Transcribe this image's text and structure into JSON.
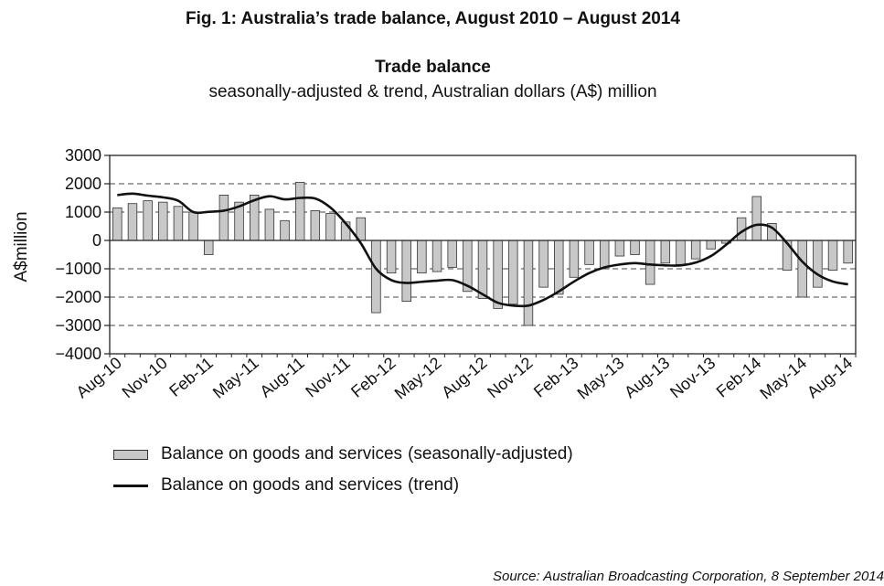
{
  "figure": {
    "title": "Fig. 1: Australia’s trade balance, August 2010 – August 2014",
    "source": "Source: Australian Broadcasting Corporation, 8 September 2014"
  },
  "legend": {
    "bar_main": "Balance on goods and services",
    "bar_qualifier": "(seasonally-adjusted)",
    "line_main": "Balance on goods and services",
    "line_qualifier": "(trend)"
  },
  "chart_data": {
    "type": "bar",
    "title": "Trade balance",
    "subtitle": "seasonally-adjusted & trend, Australian dollars (A$) million",
    "ylabel": "A$million",
    "xlabel": "",
    "ylim": [
      -4000,
      3000
    ],
    "yticks": [
      3000,
      2000,
      1000,
      0,
      -1000,
      -2000,
      -3000,
      -4000
    ],
    "ytick_labels": [
      "3000",
      "2000",
      "1000",
      "0",
      "−1000",
      "−2000",
      "−3000",
      "−4000"
    ],
    "grid": "horizontal dashed",
    "categories": [
      "Aug-10",
      "Sep-10",
      "Oct-10",
      "Nov-10",
      "Dec-10",
      "Jan-11",
      "Feb-11",
      "Mar-11",
      "Apr-11",
      "May-11",
      "Jun-11",
      "Jul-11",
      "Aug-11",
      "Sep-11",
      "Oct-11",
      "Nov-11",
      "Dec-11",
      "Jan-12",
      "Feb-12",
      "Mar-12",
      "Apr-12",
      "May-12",
      "Jun-12",
      "Jul-12",
      "Aug-12",
      "Sep-12",
      "Oct-12",
      "Nov-12",
      "Dec-12",
      "Jan-13",
      "Feb-13",
      "Mar-13",
      "Apr-13",
      "May-13",
      "Jun-13",
      "Jul-13",
      "Aug-13",
      "Sep-13",
      "Oct-13",
      "Nov-13",
      "Dec-13",
      "Jan-14",
      "Feb-14",
      "Mar-14",
      "Apr-14",
      "May-14",
      "Jun-14",
      "Jul-14",
      "Aug-14"
    ],
    "x_tick_labels": [
      "Aug-10",
      "Nov-10",
      "Feb-11",
      "May-11",
      "Aug-11",
      "Nov-11",
      "Feb-12",
      "May-12",
      "Aug-12",
      "Nov-12",
      "Feb-13",
      "May-13",
      "Aug-13",
      "Nov-13",
      "Feb-14",
      "May-14",
      "Aug-14"
    ],
    "series": [
      {
        "name": "Balance on goods and services (seasonally-adjusted)",
        "type": "bar",
        "color": "#c8c8c8",
        "values": [
          1150,
          1300,
          1400,
          1350,
          1200,
          1000,
          -500,
          1600,
          1350,
          1600,
          1100,
          700,
          2050,
          1050,
          950,
          650,
          800,
          -2550,
          -1150,
          -2150,
          -1150,
          -1100,
          -950,
          -1800,
          -2050,
          -2400,
          -2250,
          -3000,
          -1650,
          -1900,
          -1300,
          -850,
          -1000,
          -550,
          -500,
          -1550,
          -800,
          -850,
          -650,
          -300,
          -100,
          800,
          1550,
          600,
          -1050,
          -2000,
          -1650,
          -1050,
          -800
        ]
      },
      {
        "name": "Balance on goods and services (trend)",
        "type": "line",
        "color": "#111111",
        "values": [
          1600,
          1650,
          1580,
          1520,
          1400,
          1000,
          1010,
          1050,
          1200,
          1420,
          1560,
          1450,
          1500,
          1480,
          1160,
          600,
          -100,
          -1000,
          -1400,
          -1500,
          -1460,
          -1420,
          -1400,
          -1600,
          -1900,
          -2200,
          -2300,
          -2300,
          -2100,
          -1800,
          -1450,
          -1150,
          -950,
          -850,
          -800,
          -850,
          -880,
          -880,
          -780,
          -550,
          -150,
          300,
          550,
          450,
          -100,
          -750,
          -1200,
          -1450,
          -1550
        ]
      }
    ]
  }
}
